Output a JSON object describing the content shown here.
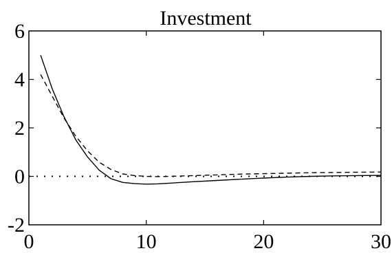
{
  "chart_data": {
    "type": "line",
    "title": "Investment",
    "xlabel": "",
    "ylabel": "",
    "xlim": [
      0,
      30
    ],
    "ylim": [
      -2,
      6
    ],
    "x_ticks": [
      0,
      10,
      20,
      30
    ],
    "y_ticks": [
      6,
      4,
      2,
      0,
      -2
    ],
    "grid": false,
    "legend": "none",
    "series": [
      {
        "style": "solid",
        "x": [
          1,
          2,
          3,
          4,
          5,
          6,
          7,
          8,
          9,
          10,
          11,
          12,
          14,
          16,
          18,
          20,
          22,
          24,
          26,
          28,
          30
        ],
        "values": [
          5.0,
          3.6,
          2.45,
          1.5,
          0.8,
          0.25,
          -0.1,
          -0.25,
          -0.3,
          -0.32,
          -0.31,
          -0.28,
          -0.22,
          -0.17,
          -0.12,
          -0.07,
          -0.03,
          0.0,
          0.02,
          0.03,
          0.04
        ]
      },
      {
        "style": "dashed",
        "x": [
          1,
          2,
          3,
          4,
          5,
          6,
          7,
          8,
          9,
          10,
          11,
          12,
          14,
          16,
          18,
          20,
          22,
          24,
          26,
          28,
          30
        ],
        "values": [
          4.2,
          3.3,
          2.4,
          1.65,
          1.05,
          0.58,
          0.28,
          0.1,
          0.03,
          0.0,
          -0.01,
          0.0,
          0.03,
          0.06,
          0.09,
          0.11,
          0.13,
          0.15,
          0.16,
          0.17,
          0.18
        ]
      },
      {
        "style": "dotted",
        "x": [
          0,
          30
        ],
        "values": [
          0,
          0
        ]
      }
    ]
  }
}
